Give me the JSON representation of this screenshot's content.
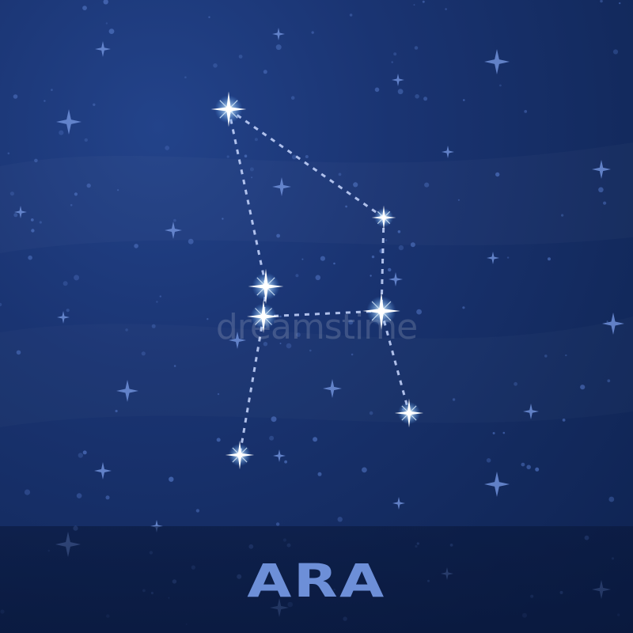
{
  "title": "ARA",
  "watermark": "dreamstime",
  "colors": {
    "background": "#1a3472",
    "title": "#6d8fd8",
    "star_core": "#ffffff",
    "star_glow": "#9fd2ff",
    "line": "#c9d8ff",
    "dust": "#4a6cb8"
  },
  "icons": [
    "bright-star-icon",
    "faint-star-icon"
  ]
}
